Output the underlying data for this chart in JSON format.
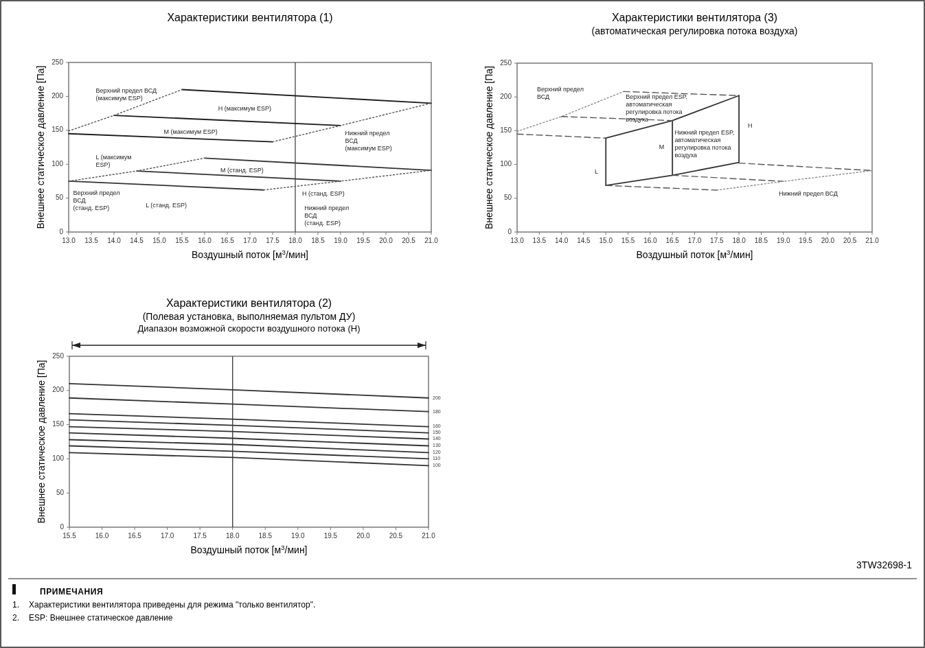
{
  "chart_data": [
    {
      "type": "line",
      "title": "Характеристики вентилятора (1)",
      "xlabel": "Воздушный поток [м$^{3}$/мин]",
      "ylabel": "Внешнее статическое давление [Па]",
      "legend": false,
      "grid": false,
      "xlim": [
        13,
        21
      ],
      "ylim": [
        0,
        250
      ],
      "xticks": [
        {
          "value": 13,
          "label": "13.0"
        },
        13.5,
        {
          "value": 14,
          "label": "14.0"
        },
        14.5,
        {
          "value": 15,
          "label": "15.0"
        },
        15.5,
        {
          "value": 16,
          "label": "16.0"
        },
        16.5,
        {
          "value": 17,
          "label": "17.0"
        },
        17.5,
        {
          "value": 18,
          "label": "18.0"
        },
        18.5,
        {
          "value": 19,
          "label": "19.0"
        },
        19.5,
        {
          "value": 20,
          "label": "20.0"
        },
        20.5,
        {
          "value": 21,
          "label": "21.0"
        }
      ],
      "yticks": [
        0,
        50,
        100,
        150,
        200,
        250
      ],
      "ref_lines": [
        {
          "axis": "x",
          "value": 18,
          "color": "#444444"
        }
      ],
      "series": [
        {
          "color": "#1a1a1a",
          "line_style": "solid",
          "x": [
            15.5,
            21
          ],
          "values": [
            210,
            190
          ]
        },
        {
          "color": "#1a1a1a",
          "line_style": "solid",
          "x": [
            14,
            19
          ],
          "values": [
            172,
            157
          ]
        },
        {
          "color": "#1a1a1a",
          "line_style": "solid",
          "x": [
            13,
            17.5
          ],
          "values": [
            145,
            133
          ]
        },
        {
          "color": "#333333",
          "line_style": "solid",
          "x": [
            16,
            21
          ],
          "values": [
            109,
            91
          ]
        },
        {
          "color": "#333333",
          "line_style": "solid",
          "x": [
            14.5,
            19
          ],
          "values": [
            90,
            75
          ]
        },
        {
          "color": "#333333",
          "line_style": "solid",
          "x": [
            13,
            17.3
          ],
          "values": [
            75,
            62
          ]
        },
        {
          "color": "#555555",
          "line_style": "dotted",
          "x": [
            13,
            14,
            15.5
          ],
          "values": [
            149,
            172,
            210
          ]
        },
        {
          "color": "#555555",
          "line_style": "dotted",
          "x": [
            17.5,
            19,
            21
          ],
          "values": [
            133,
            157,
            190
          ]
        },
        {
          "color": "#555555",
          "line_style": "dotted",
          "x": [
            13,
            14.5,
            16
          ],
          "values": [
            75,
            90,
            109
          ]
        },
        {
          "color": "#555555",
          "line_style": "dotted",
          "x": [
            17.3,
            19,
            21
          ],
          "values": [
            62,
            75,
            91
          ]
        }
      ],
      "annotations": [
        "Верхний предел ВСД\n(максимум ESP)",
        "H (максимум ESP)",
        "M (максимум ESP)",
        "Нижний предел\nВСД\n(максимум ESP)",
        "L (максимум\nESP)",
        "M (станд. ESP)",
        "H (станд. ESP)",
        "Верхний предел\nВСД\n(станд. ESP)",
        "L (станд. ESP)",
        "Нижний предел\nВСД\n(станд. ESP)"
      ]
    },
    {
      "type": "line",
      "title": "Характеристики вентилятора (3)",
      "subtitle": "(автоматическая регулировка потока воздуха)",
      "xlabel": "Воздушный поток [м$^{3}$/мин]",
      "ylabel": "Внешнее статическое давление [Па]",
      "legend": false,
      "grid": false,
      "xlim": [
        13,
        21
      ],
      "ylim": [
        0,
        250
      ],
      "xticks": [
        {
          "value": 13,
          "label": "13.0"
        },
        13.5,
        {
          "value": 14,
          "label": "14.0"
        },
        14.5,
        {
          "value": 15,
          "label": "15.0"
        },
        15.5,
        {
          "value": 16,
          "label": "16.0"
        },
        16.5,
        {
          "value": 17,
          "label": "17.0"
        },
        17.5,
        {
          "value": 18,
          "label": "18.0"
        },
        18.5,
        {
          "value": 19,
          "label": "19.0"
        },
        19.5,
        {
          "value": 20,
          "label": "20.0"
        },
        20.5,
        {
          "value": 21,
          "label": "21.0"
        }
      ],
      "yticks": [
        0,
        50,
        100,
        150,
        200,
        250
      ],
      "series": [
        {
          "color": "#333333",
          "line_style": "solid",
          "x": [
            15,
            15
          ],
          "values": [
            69,
            139
          ]
        },
        {
          "color": "#333333",
          "line_style": "solid",
          "x": [
            16.5,
            16.5
          ],
          "values": [
            84,
            165
          ]
        },
        {
          "color": "#333333",
          "line_style": "solid",
          "x": [
            18,
            18
          ],
          "values": [
            103,
            202
          ]
        },
        {
          "color": "#333333",
          "line_style": "solid",
          "x": [
            15,
            16.5,
            18
          ],
          "values": [
            139,
            165,
            202
          ]
        },
        {
          "color": "#333333",
          "line_style": "solid",
          "x": [
            15,
            16.5,
            18
          ],
          "values": [
            69,
            84,
            103
          ]
        },
        {
          "color": "#8a8a8a",
          "line_style": "dotted",
          "x": [
            13,
            14,
            15.4
          ],
          "values": [
            149,
            171,
            208
          ]
        },
        {
          "color": "#555555",
          "line_style": "dashed",
          "x": [
            15.4,
            18
          ],
          "values": [
            208,
            202
          ]
        },
        {
          "color": "#555555",
          "line_style": "dashed",
          "x": [
            14,
            16.5
          ],
          "values": [
            171,
            165
          ]
        },
        {
          "color": "#555555",
          "line_style": "dashed",
          "x": [
            13,
            15
          ],
          "values": [
            145,
            139
          ]
        },
        {
          "color": "#555555",
          "line_style": "dashed",
          "x": [
            18,
            21
          ],
          "values": [
            102,
            91
          ]
        },
        {
          "color": "#555555",
          "line_style": "dashed",
          "x": [
            16.5,
            19
          ],
          "values": [
            84,
            75
          ]
        },
        {
          "color": "#555555",
          "line_style": "dashed",
          "x": [
            15,
            17.5
          ],
          "values": [
            69,
            62
          ]
        },
        {
          "color": "#8a8a8a",
          "line_style": "dotted",
          "x": [
            17.5,
            19,
            21
          ],
          "values": [
            62,
            75,
            91
          ]
        }
      ],
      "annotations": [
        "Верхний предел\nВСД",
        "Верхний предел ESP,\nавтоматическая\nрегулировка потока\nвоздуха",
        "H",
        "M",
        "L",
        "Нижний предел ESP,\nавтоматическая\nрегулировка потока\nвоздуха",
        "Нижний предел ВСД"
      ]
    },
    {
      "type": "line",
      "title": "Характеристики вентилятора (2)",
      "subtitle": "(Полевая установка, выполняемая пультом ДУ)",
      "xlabel": "Воздушный поток [м$^{3}$/мин]",
      "ylabel": "Внешнее статическое давление [Па]",
      "legend": false,
      "grid": false,
      "xlim": [
        15.5,
        21
      ],
      "ylim": [
        0,
        250
      ],
      "xticks": [
        15.5,
        {
          "value": 16,
          "label": "16.0"
        },
        16.5,
        {
          "value": 17,
          "label": "17.0"
        },
        17.5,
        {
          "value": 18,
          "label": "18.0"
        },
        18.5,
        {
          "value": 19,
          "label": "19.0"
        },
        19.5,
        {
          "value": 20,
          "label": "20.0"
        },
        20.5,
        {
          "value": 21,
          "label": "21.0"
        }
      ],
      "yticks": [
        0,
        50,
        100,
        150,
        200,
        250
      ],
      "ref_lines": [
        {
          "axis": "x",
          "value": 18,
          "color": "#333333"
        }
      ],
      "series": [
        {
          "name": "200",
          "color": "#333333",
          "line_style": "solid",
          "x": [
            15.5,
            18,
            21
          ],
          "values": [
            210,
            201,
            189
          ]
        },
        {
          "name": "180",
          "color": "#333333",
          "line_style": "solid",
          "x": [
            15.5,
            18,
            21
          ],
          "values": [
            189,
            180,
            169
          ]
        },
        {
          "name": "160",
          "color": "#333333",
          "line_style": "solid",
          "x": [
            15.5,
            18,
            21
          ],
          "values": [
            166,
            158,
            147
          ]
        },
        {
          "name": "150",
          "color": "#333333",
          "line_style": "solid",
          "x": [
            15.5,
            18,
            21
          ],
          "values": [
            157,
            149,
            138
          ]
        },
        {
          "name": "140",
          "color": "#333333",
          "line_style": "solid",
          "x": [
            15.5,
            18,
            21
          ],
          "values": [
            147,
            140,
            129
          ]
        },
        {
          "name": "130",
          "color": "#333333",
          "line_style": "solid",
          "x": [
            15.5,
            18,
            21
          ],
          "values": [
            138,
            130,
            119
          ]
        },
        {
          "name": "120",
          "color": "#333333",
          "line_style": "solid",
          "x": [
            15.5,
            18,
            21
          ],
          "values": [
            128,
            121,
            109
          ]
        },
        {
          "name": "110",
          "color": "#333333",
          "line_style": "solid",
          "x": [
            15.5,
            18,
            21
          ],
          "values": [
            119,
            111,
            100
          ]
        },
        {
          "name": "100",
          "color": "#333333",
          "line_style": "solid",
          "x": [
            15.5,
            18,
            21
          ],
          "values": [
            109,
            102,
            90
          ]
        }
      ],
      "annotations": [
        "Диапазон возможной скорости воздушного потока (H)"
      ]
    },
    {
      "type": "other",
      "annotations": [
        "3TW32698-1",
        "ПРИМЕЧАНИЯ",
        "1. Характеристики вентилятора приведены для режима \"только вентилятор\".",
        "2. ESP: Внешнее статическое давление"
      ]
    }
  ]
}
